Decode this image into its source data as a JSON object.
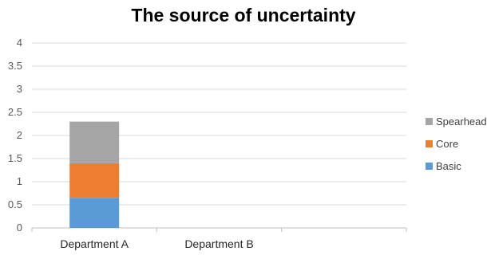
{
  "chart_data": {
    "type": "bar",
    "stacked": true,
    "title": "The source of uncertainty",
    "categories": [
      "Department A",
      "Department B"
    ],
    "series": [
      {
        "name": "Basic",
        "values": [
          0.65,
          0
        ],
        "color": "#5B9BD5"
      },
      {
        "name": "Core",
        "values": [
          0.75,
          0
        ],
        "color": "#ED7D31"
      },
      {
        "name": "Spearhead",
        "values": [
          0.9,
          0
        ],
        "color": "#A5A5A5"
      }
    ],
    "yticks": [
      "0",
      "0.5",
      "1",
      "1.5",
      "2",
      "2.5",
      "3",
      "3.5",
      "4"
    ],
    "ylim": [
      0,
      4
    ],
    "grid": true,
    "legend_position": "right"
  }
}
